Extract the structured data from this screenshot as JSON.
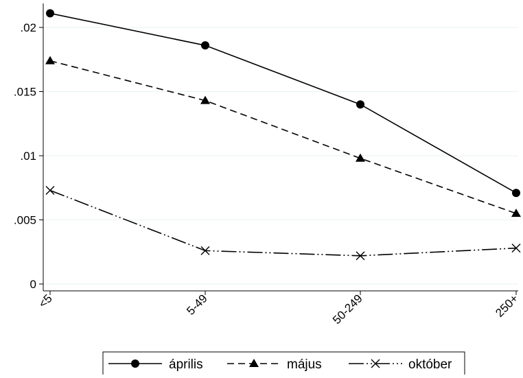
{
  "chart_data": {
    "type": "line",
    "categories": [
      "<5",
      "5-49",
      "50-249",
      "250+"
    ],
    "ylim": [
      0,
      0.021
    ],
    "yticks": [
      0,
      0.005,
      0.01,
      0.015,
      0.02
    ],
    "ytick_labels": [
      "0",
      ".005",
      ".01",
      ".015",
      ".02"
    ],
    "grid": true,
    "legend_position": "bottom",
    "series": [
      {
        "name": "április",
        "values": [
          0.0211,
          0.0186,
          0.014,
          0.0071
        ],
        "color": "#000000",
        "line_style": "solid",
        "marker": "circle"
      },
      {
        "name": "május",
        "values": [
          0.0174,
          0.0143,
          0.0098,
          0.0055
        ],
        "color": "#000000",
        "line_style": "dashed",
        "marker": "triangle"
      },
      {
        "name": "október",
        "values": [
          0.0073,
          0.0026,
          0.0022,
          0.0028
        ],
        "color": "#000000",
        "line_style": "dash-dot-dot",
        "marker": "x"
      }
    ]
  }
}
